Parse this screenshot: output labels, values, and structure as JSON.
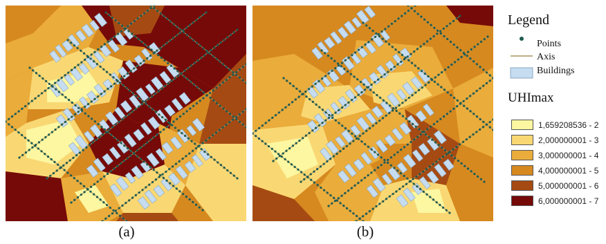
{
  "captions": {
    "a": "(a)",
    "b": "(b)"
  },
  "legend": {
    "title": "Legend",
    "points_label": "Points",
    "axis_label": "Axis",
    "buildings_label": "Buildings",
    "uhi_title": "UHImax",
    "classes": [
      {
        "label": "1,659208536 - 2",
        "color": "#fcf7a0"
      },
      {
        "label": "2,000000001 - 3",
        "color": "#f9d874"
      },
      {
        "label": "3,000000001 - 4",
        "color": "#eaac3a"
      },
      {
        "label": "4,000000001 - 5",
        "color": "#d6891f"
      },
      {
        "label": "5,000000001 - 6",
        "color": "#a64a13"
      },
      {
        "label": "6,000000001 - 7",
        "color": "#760a08"
      }
    ]
  },
  "colors": {
    "point": "#1e5a50",
    "axis": "#a8925c",
    "building": "#c6dcf0",
    "building_outline": "#8aa8c2"
  }
}
